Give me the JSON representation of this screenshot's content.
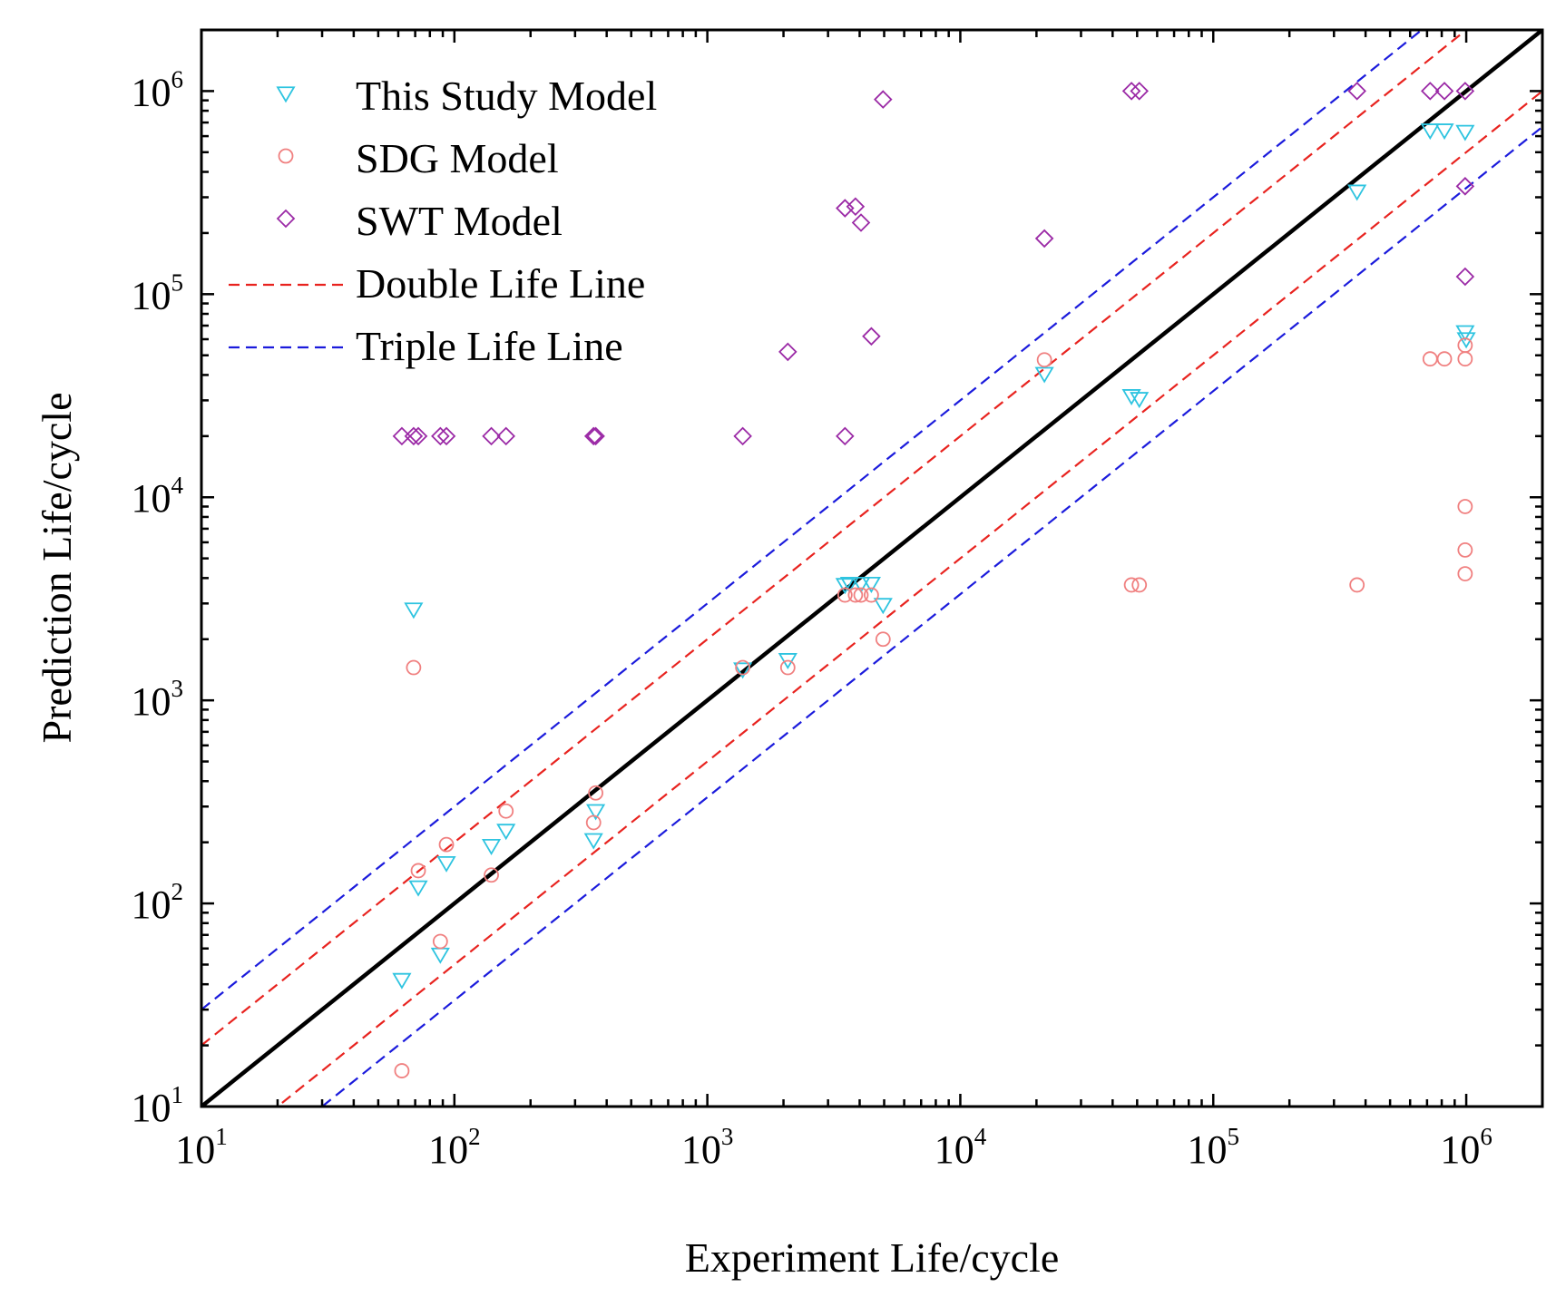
{
  "chart_data": {
    "type": "scatter",
    "title": "",
    "xlabel": "Experiment Life/cycle",
    "ylabel": "Prediction Life/cycle",
    "xscale": "log",
    "yscale": "log",
    "xlim": [
      10,
      2000000
    ],
    "ylim": [
      10,
      2000000
    ],
    "x_ticks": [
      {
        "base": "10",
        "exp": "1",
        "value": 10
      },
      {
        "base": "10",
        "exp": "2",
        "value": 100
      },
      {
        "base": "10",
        "exp": "3",
        "value": 1000
      },
      {
        "base": "10",
        "exp": "4",
        "value": 10000
      },
      {
        "base": "10",
        "exp": "5",
        "value": 100000
      },
      {
        "base": "10",
        "exp": "6",
        "value": 1000000
      }
    ],
    "y_ticks": [
      {
        "base": "10",
        "exp": "1",
        "value": 10
      },
      {
        "base": "10",
        "exp": "2",
        "value": 100
      },
      {
        "base": "10",
        "exp": "3",
        "value": 1000
      },
      {
        "base": "10",
        "exp": "4",
        "value": 10000
      },
      {
        "base": "10",
        "exp": "5",
        "value": 100000
      },
      {
        "base": "10",
        "exp": "6",
        "value": 1000000
      }
    ],
    "legend_position": "top-left",
    "legend": [
      {
        "label": "This Study Model",
        "marker": "triangle-down",
        "color": "#2ec4e0"
      },
      {
        "label": "SDG Model",
        "marker": "circle",
        "color": "#f08080"
      },
      {
        "label": "SWT Model",
        "marker": "diamond",
        "color": "#9b2aa6"
      },
      {
        "label": "Double Life Line",
        "marker": "dashed-line",
        "color": "#e8231f"
      },
      {
        "label": "Triple Life Line",
        "marker": "dashed-line",
        "color": "#1b1bdc"
      }
    ],
    "reference_lines": [
      {
        "name": "perfect",
        "factor": 1,
        "color": "#000000",
        "style": "solid"
      },
      {
        "name": "double-upper",
        "factor": 2,
        "color": "#e8231f",
        "style": "dashed"
      },
      {
        "name": "double-lower",
        "factor": 0.5,
        "color": "#e8231f",
        "style": "dashed"
      },
      {
        "name": "triple-upper",
        "factor": 3,
        "color": "#1b1bdc",
        "style": "dashed"
      },
      {
        "name": "triple-lower",
        "factor": 0.3333,
        "color": "#1b1bdc",
        "style": "dashed"
      }
    ],
    "series": [
      {
        "name": "This Study Model",
        "marker": "triangle-down",
        "color": "#2ec4e0",
        "points": [
          [
            62,
            42
          ],
          [
            69,
            2800
          ],
          [
            72,
            120
          ],
          [
            88,
            56
          ],
          [
            93,
            158
          ],
          [
            140,
            192
          ],
          [
            160,
            228
          ],
          [
            355,
            205
          ],
          [
            362,
            285
          ],
          [
            1380,
            1420
          ],
          [
            2080,
            1580
          ],
          [
            3500,
            3700
          ],
          [
            3650,
            3750
          ],
          [
            4050,
            3750
          ],
          [
            4450,
            3750
          ],
          [
            4950,
            2950
          ],
          [
            21500,
            40500
          ],
          [
            47500,
            31500
          ],
          [
            51000,
            30500
          ],
          [
            370000,
            320000
          ],
          [
            720000,
            640000
          ],
          [
            820000,
            640000
          ],
          [
            990000,
            630000
          ],
          [
            990000,
            65000
          ],
          [
            1000000,
            60000
          ]
        ]
      },
      {
        "name": "SDG Model",
        "marker": "circle",
        "color": "#f08080",
        "points": [
          [
            62,
            15
          ],
          [
            69,
            1450
          ],
          [
            72,
            145
          ],
          [
            88,
            65
          ],
          [
            93,
            195
          ],
          [
            140,
            138
          ],
          [
            160,
            285
          ],
          [
            355,
            250
          ],
          [
            362,
            350
          ],
          [
            1380,
            1450
          ],
          [
            2080,
            1450
          ],
          [
            3500,
            3300
          ],
          [
            3850,
            3300
          ],
          [
            4050,
            3300
          ],
          [
            4450,
            3300
          ],
          [
            4950,
            2000
          ],
          [
            21500,
            47500
          ],
          [
            47500,
            3700
          ],
          [
            51000,
            3700
          ],
          [
            370000,
            3700
          ],
          [
            720000,
            48000
          ],
          [
            820000,
            48000
          ],
          [
            990000,
            48000
          ],
          [
            990000,
            56000
          ],
          [
            990000,
            9000
          ],
          [
            990000,
            5500
          ],
          [
            990000,
            4200
          ]
        ]
      },
      {
        "name": "SWT Model",
        "marker": "diamond",
        "color": "#9b2aa6",
        "points": [
          [
            62,
            20000
          ],
          [
            69,
            20000
          ],
          [
            72,
            20000
          ],
          [
            88,
            20000
          ],
          [
            93,
            20000
          ],
          [
            140,
            20000
          ],
          [
            160,
            20000
          ],
          [
            355,
            20000
          ],
          [
            362,
            20000
          ],
          [
            1380,
            20000
          ],
          [
            3500,
            20000
          ],
          [
            2080,
            52000
          ],
          [
            4450,
            62000
          ],
          [
            3500,
            265000
          ],
          [
            3850,
            270000
          ],
          [
            4050,
            225000
          ],
          [
            4950,
            910000
          ],
          [
            21500,
            188000
          ],
          [
            47500,
            1000000
          ],
          [
            51000,
            1000000
          ],
          [
            370000,
            1000000
          ],
          [
            720000,
            1000000
          ],
          [
            820000,
            1000000
          ],
          [
            990000,
            1000000
          ],
          [
            990000,
            340000
          ],
          [
            990000,
            122000
          ]
        ]
      }
    ]
  }
}
